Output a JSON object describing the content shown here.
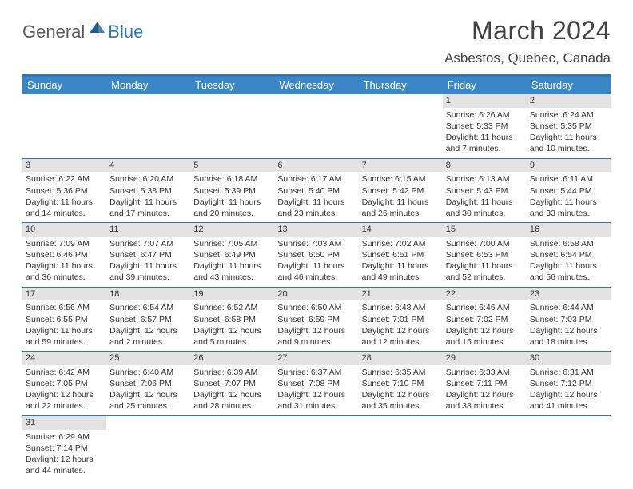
{
  "logo": {
    "text1": "General",
    "text2": "Blue",
    "icon_color": "#2f77bb",
    "text1_color": "#5a5a5a"
  },
  "title": "March 2024",
  "location": "Asbestos, Quebec, Canada",
  "header_bg": "#3b86c7",
  "accent": "#2f77bb",
  "daynum_bg": "#e3e3e3",
  "weekdays": [
    "Sunday",
    "Monday",
    "Tuesday",
    "Wednesday",
    "Thursday",
    "Friday",
    "Saturday"
  ],
  "weeks": [
    [
      {
        "n": "",
        "sr": "",
        "ss": "",
        "dl": ""
      },
      {
        "n": "",
        "sr": "",
        "ss": "",
        "dl": ""
      },
      {
        "n": "",
        "sr": "",
        "ss": "",
        "dl": ""
      },
      {
        "n": "",
        "sr": "",
        "ss": "",
        "dl": ""
      },
      {
        "n": "",
        "sr": "",
        "ss": "",
        "dl": ""
      },
      {
        "n": "1",
        "sr": "Sunrise: 6:26 AM",
        "ss": "Sunset: 5:33 PM",
        "dl": "Daylight: 11 hours and 7 minutes."
      },
      {
        "n": "2",
        "sr": "Sunrise: 6:24 AM",
        "ss": "Sunset: 5:35 PM",
        "dl": "Daylight: 11 hours and 10 minutes."
      }
    ],
    [
      {
        "n": "3",
        "sr": "Sunrise: 6:22 AM",
        "ss": "Sunset: 5:36 PM",
        "dl": "Daylight: 11 hours and 14 minutes."
      },
      {
        "n": "4",
        "sr": "Sunrise: 6:20 AM",
        "ss": "Sunset: 5:38 PM",
        "dl": "Daylight: 11 hours and 17 minutes."
      },
      {
        "n": "5",
        "sr": "Sunrise: 6:18 AM",
        "ss": "Sunset: 5:39 PM",
        "dl": "Daylight: 11 hours and 20 minutes."
      },
      {
        "n": "6",
        "sr": "Sunrise: 6:17 AM",
        "ss": "Sunset: 5:40 PM",
        "dl": "Daylight: 11 hours and 23 minutes."
      },
      {
        "n": "7",
        "sr": "Sunrise: 6:15 AM",
        "ss": "Sunset: 5:42 PM",
        "dl": "Daylight: 11 hours and 26 minutes."
      },
      {
        "n": "8",
        "sr": "Sunrise: 6:13 AM",
        "ss": "Sunset: 5:43 PM",
        "dl": "Daylight: 11 hours and 30 minutes."
      },
      {
        "n": "9",
        "sr": "Sunrise: 6:11 AM",
        "ss": "Sunset: 5:44 PM",
        "dl": "Daylight: 11 hours and 33 minutes."
      }
    ],
    [
      {
        "n": "10",
        "sr": "Sunrise: 7:09 AM",
        "ss": "Sunset: 6:46 PM",
        "dl": "Daylight: 11 hours and 36 minutes."
      },
      {
        "n": "11",
        "sr": "Sunrise: 7:07 AM",
        "ss": "Sunset: 6:47 PM",
        "dl": "Daylight: 11 hours and 39 minutes."
      },
      {
        "n": "12",
        "sr": "Sunrise: 7:05 AM",
        "ss": "Sunset: 6:49 PM",
        "dl": "Daylight: 11 hours and 43 minutes."
      },
      {
        "n": "13",
        "sr": "Sunrise: 7:03 AM",
        "ss": "Sunset: 6:50 PM",
        "dl": "Daylight: 11 hours and 46 minutes."
      },
      {
        "n": "14",
        "sr": "Sunrise: 7:02 AM",
        "ss": "Sunset: 6:51 PM",
        "dl": "Daylight: 11 hours and 49 minutes."
      },
      {
        "n": "15",
        "sr": "Sunrise: 7:00 AM",
        "ss": "Sunset: 6:53 PM",
        "dl": "Daylight: 11 hours and 52 minutes."
      },
      {
        "n": "16",
        "sr": "Sunrise: 6:58 AM",
        "ss": "Sunset: 6:54 PM",
        "dl": "Daylight: 11 hours and 56 minutes."
      }
    ],
    [
      {
        "n": "17",
        "sr": "Sunrise: 6:56 AM",
        "ss": "Sunset: 6:55 PM",
        "dl": "Daylight: 11 hours and 59 minutes."
      },
      {
        "n": "18",
        "sr": "Sunrise: 6:54 AM",
        "ss": "Sunset: 6:57 PM",
        "dl": "Daylight: 12 hours and 2 minutes."
      },
      {
        "n": "19",
        "sr": "Sunrise: 6:52 AM",
        "ss": "Sunset: 6:58 PM",
        "dl": "Daylight: 12 hours and 5 minutes."
      },
      {
        "n": "20",
        "sr": "Sunrise: 6:50 AM",
        "ss": "Sunset: 6:59 PM",
        "dl": "Daylight: 12 hours and 9 minutes."
      },
      {
        "n": "21",
        "sr": "Sunrise: 6:48 AM",
        "ss": "Sunset: 7:01 PM",
        "dl": "Daylight: 12 hours and 12 minutes."
      },
      {
        "n": "22",
        "sr": "Sunrise: 6:46 AM",
        "ss": "Sunset: 7:02 PM",
        "dl": "Daylight: 12 hours and 15 minutes."
      },
      {
        "n": "23",
        "sr": "Sunrise: 6:44 AM",
        "ss": "Sunset: 7:03 PM",
        "dl": "Daylight: 12 hours and 18 minutes."
      }
    ],
    [
      {
        "n": "24",
        "sr": "Sunrise: 6:42 AM",
        "ss": "Sunset: 7:05 PM",
        "dl": "Daylight: 12 hours and 22 minutes."
      },
      {
        "n": "25",
        "sr": "Sunrise: 6:40 AM",
        "ss": "Sunset: 7:06 PM",
        "dl": "Daylight: 12 hours and 25 minutes."
      },
      {
        "n": "26",
        "sr": "Sunrise: 6:39 AM",
        "ss": "Sunset: 7:07 PM",
        "dl": "Daylight: 12 hours and 28 minutes."
      },
      {
        "n": "27",
        "sr": "Sunrise: 6:37 AM",
        "ss": "Sunset: 7:08 PM",
        "dl": "Daylight: 12 hours and 31 minutes."
      },
      {
        "n": "28",
        "sr": "Sunrise: 6:35 AM",
        "ss": "Sunset: 7:10 PM",
        "dl": "Daylight: 12 hours and 35 minutes."
      },
      {
        "n": "29",
        "sr": "Sunrise: 6:33 AM",
        "ss": "Sunset: 7:11 PM",
        "dl": "Daylight: 12 hours and 38 minutes."
      },
      {
        "n": "30",
        "sr": "Sunrise: 6:31 AM",
        "ss": "Sunset: 7:12 PM",
        "dl": "Daylight: 12 hours and 41 minutes."
      }
    ],
    [
      {
        "n": "31",
        "sr": "Sunrise: 6:29 AM",
        "ss": "Sunset: 7:14 PM",
        "dl": "Daylight: 12 hours and 44 minutes."
      },
      {
        "n": "",
        "sr": "",
        "ss": "",
        "dl": ""
      },
      {
        "n": "",
        "sr": "",
        "ss": "",
        "dl": ""
      },
      {
        "n": "",
        "sr": "",
        "ss": "",
        "dl": ""
      },
      {
        "n": "",
        "sr": "",
        "ss": "",
        "dl": ""
      },
      {
        "n": "",
        "sr": "",
        "ss": "",
        "dl": ""
      },
      {
        "n": "",
        "sr": "",
        "ss": "",
        "dl": ""
      }
    ]
  ]
}
